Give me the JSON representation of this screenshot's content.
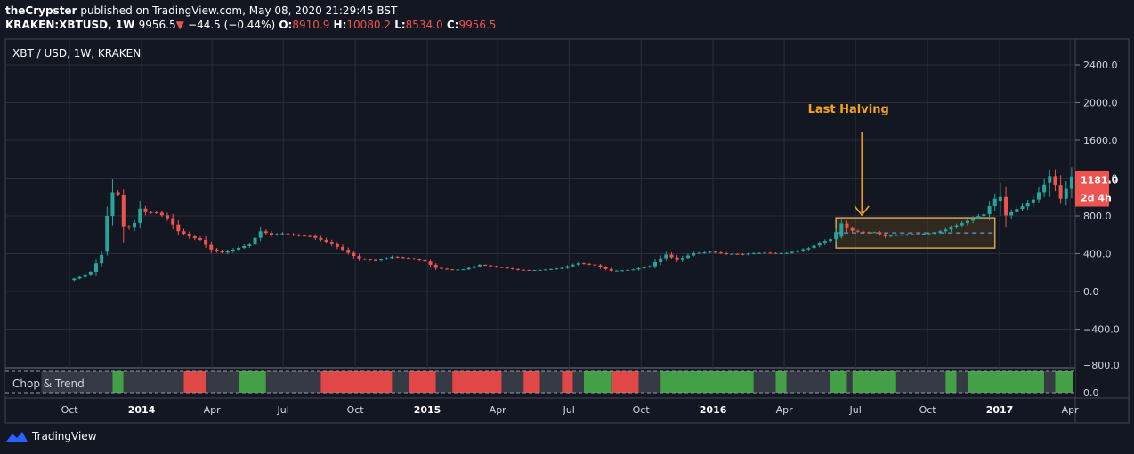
{
  "header": {
    "author": "theCrypster",
    "published_text": "published on TradingView.com, May 08, 2020 21:29:45 BST",
    "symbol": "KRAKEN:XBTUSD, 1W",
    "last": "9956.5",
    "down_arrow": "▼",
    "change": "−44.5 (−0.44%)",
    "o_label": "O:",
    "o_value": "8910.9",
    "h_label": "H:",
    "h_value": "10080.2",
    "l_label": "L:",
    "l_value": "8534.0",
    "c_label": "C:",
    "c_value": "9956.5"
  },
  "pane_title": "XBT / USD, 1W, KRAKEN",
  "annotation": "Last Halving",
  "price_label": "1181.0",
  "time_label": "2d 4h",
  "indicator_title": "Chop & Trend",
  "footer": {
    "brand": "TradingView",
    "logo_icon": "tradingview-logo-icon"
  },
  "colors": {
    "up": "#26a69a",
    "down": "#ef5350",
    "annotation": "#f7a21b",
    "chop": "#363a45",
    "trend_up": "#43a047",
    "trend_down": "#e04848"
  },
  "chart_data": {
    "type": "candlestick",
    "ylim": [
      -800,
      2600
    ],
    "y_ticks": [
      -800,
      -400,
      0,
      400,
      800,
      1200,
      1600,
      2000,
      2400
    ],
    "y_tick_labels": [
      "−800.0",
      "−400.0",
      "0.0",
      "400.0",
      "800.0",
      "1200.0",
      "1600.0",
      "2000.0",
      "2400.0"
    ],
    "x_ticks": [
      "Oct",
      "2014",
      "Apr",
      "Jul",
      "Oct",
      "2015",
      "Apr",
      "Jul",
      "Oct",
      "2016",
      "Apr",
      "Jul",
      "Oct",
      "2017",
      "Apr"
    ],
    "close_path": [
      [
        "2013-09-30",
        120
      ],
      [
        "2013-10-14",
        150
      ],
      [
        "2013-10-28",
        200
      ],
      [
        "2013-11-11",
        380
      ],
      [
        "2013-11-25",
        800
      ],
      [
        "2013-12-02",
        1050
      ],
      [
        "2013-12-09",
        900
      ],
      [
        "2013-12-16",
        700
      ],
      [
        "2013-12-23",
        750
      ],
      [
        "2013-12-30",
        900
      ],
      [
        "2014-01-06",
        850
      ],
      [
        "2014-01-20",
        820
      ],
      [
        "2014-02-03",
        750
      ],
      [
        "2014-02-17",
        620
      ],
      [
        "2014-03-03",
        580
      ],
      [
        "2014-03-17",
        560
      ],
      [
        "2014-03-31",
        460
      ],
      [
        "2014-04-14",
        420
      ],
      [
        "2014-04-28",
        440
      ],
      [
        "2014-05-19",
        480
      ],
      [
        "2014-06-02",
        620
      ],
      [
        "2014-06-16",
        600
      ],
      [
        "2014-06-30",
        630
      ],
      [
        "2014-07-14",
        620
      ],
      [
        "2014-08-04",
        590
      ],
      [
        "2014-08-25",
        510
      ],
      [
        "2014-09-15",
        430
      ],
      [
        "2014-10-06",
        350
      ],
      [
        "2014-10-27",
        340
      ],
      [
        "2014-11-17",
        370
      ],
      [
        "2014-12-08",
        340
      ],
      [
        "2014-12-29",
        310
      ],
      [
        "2015-01-12",
        250
      ],
      [
        "2015-01-26",
        240
      ],
      [
        "2015-02-16",
        240
      ],
      [
        "2015-03-09",
        280
      ],
      [
        "2015-03-30",
        250
      ],
      [
        "2015-04-27",
        230
      ],
      [
        "2015-05-25",
        235
      ],
      [
        "2015-06-22",
        245
      ],
      [
        "2015-07-13",
        290
      ],
      [
        "2015-08-03",
        275
      ],
      [
        "2015-08-24",
        225
      ],
      [
        "2015-09-21",
        235
      ],
      [
        "2015-10-12",
        260
      ],
      [
        "2015-11-02",
        380
      ],
      [
        "2015-11-16",
        330
      ],
      [
        "2015-12-07",
        420
      ],
      [
        "2015-12-28",
        430
      ],
      [
        "2016-01-18",
        390
      ],
      [
        "2016-02-08",
        380
      ],
      [
        "2016-03-07",
        415
      ],
      [
        "2016-04-04",
        420
      ],
      [
        "2016-05-02",
        450
      ],
      [
        "2016-05-30",
        540
      ],
      [
        "2016-06-13",
        700
      ],
      [
        "2016-06-27",
        660
      ],
      [
        "2016-07-11",
        650
      ],
      [
        "2016-07-25",
        640
      ],
      [
        "2016-08-08",
        580
      ],
      [
        "2016-08-29",
        580
      ],
      [
        "2016-09-19",
        600
      ],
      [
        "2016-10-10",
        640
      ],
      [
        "2016-10-31",
        700
      ],
      [
        "2016-11-21",
        740
      ],
      [
        "2016-12-12",
        790
      ],
      [
        "2016-12-26",
        960
      ],
      [
        "2017-01-02",
        1000
      ],
      [
        "2017-01-09",
        810
      ],
      [
        "2017-01-23",
        900
      ],
      [
        "2017-02-13",
        1000
      ],
      [
        "2017-03-06",
        1200
      ],
      [
        "2017-03-13",
        1100
      ],
      [
        "2017-03-20",
        950
      ],
      [
        "2017-03-27",
        1050
      ],
      [
        "2017-04-03",
        1181
      ]
    ],
    "key_candles": [
      {
        "date": "2013-11-18",
        "open": 420,
        "high": 900,
        "low": 380,
        "close": 800
      },
      {
        "date": "2013-11-25",
        "open": 800,
        "high": 1190,
        "low": 700,
        "close": 1050
      },
      {
        "date": "2013-12-09",
        "open": 1020,
        "high": 1080,
        "low": 520,
        "close": 690
      },
      {
        "date": "2016-06-13",
        "open": 580,
        "high": 760,
        "low": 560,
        "close": 720
      },
      {
        "date": "2017-01-02",
        "open": 960,
        "high": 1150,
        "low": 800,
        "close": 1000
      },
      {
        "date": "2017-03-06",
        "open": 1150,
        "high": 1290,
        "low": 1000,
        "close": 1220
      }
    ],
    "halving_date": "2016-07-09",
    "range_box": {
      "start": "2016-06-06",
      "end": "2016-12-26",
      "top": 780,
      "bottom": 460,
      "mid": 620
    },
    "chop_trend": [
      {
        "start": "2013-08-26",
        "end": "2013-11-25",
        "state": "chop"
      },
      {
        "start": "2013-11-25",
        "end": "2013-12-09",
        "state": "up"
      },
      {
        "start": "2013-12-09",
        "end": "2014-02-24",
        "state": "chop"
      },
      {
        "start": "2014-02-24",
        "end": "2014-03-24",
        "state": "down"
      },
      {
        "start": "2014-03-24",
        "end": "2014-05-05",
        "state": "chop"
      },
      {
        "start": "2014-05-05",
        "end": "2014-06-09",
        "state": "up"
      },
      {
        "start": "2014-06-09",
        "end": "2014-08-18",
        "state": "chop"
      },
      {
        "start": "2014-08-18",
        "end": "2014-11-17",
        "state": "down"
      },
      {
        "start": "2014-11-17",
        "end": "2014-12-08",
        "state": "chop"
      },
      {
        "start": "2014-12-08",
        "end": "2015-01-12",
        "state": "down"
      },
      {
        "start": "2015-01-12",
        "end": "2015-02-02",
        "state": "chop"
      },
      {
        "start": "2015-02-02",
        "end": "2015-04-06",
        "state": "down"
      },
      {
        "start": "2015-04-06",
        "end": "2015-05-04",
        "state": "chop"
      },
      {
        "start": "2015-05-04",
        "end": "2015-05-25",
        "state": "down"
      },
      {
        "start": "2015-05-25",
        "end": "2015-06-22",
        "state": "chop"
      },
      {
        "start": "2015-06-22",
        "end": "2015-07-06",
        "state": "down"
      },
      {
        "start": "2015-07-06",
        "end": "2015-07-20",
        "state": "chop"
      },
      {
        "start": "2015-07-20",
        "end": "2015-08-24",
        "state": "up"
      },
      {
        "start": "2015-08-24",
        "end": "2015-09-28",
        "state": "down"
      },
      {
        "start": "2015-09-28",
        "end": "2015-10-26",
        "state": "chop"
      },
      {
        "start": "2015-10-26",
        "end": "2016-02-22",
        "state": "up"
      },
      {
        "start": "2016-02-22",
        "end": "2016-03-21",
        "state": "chop"
      },
      {
        "start": "2016-03-21",
        "end": "2016-04-04",
        "state": "up"
      },
      {
        "start": "2016-04-04",
        "end": "2016-05-30",
        "state": "chop"
      },
      {
        "start": "2016-05-30",
        "end": "2016-06-20",
        "state": "up"
      },
      {
        "start": "2016-06-20",
        "end": "2016-06-27",
        "state": "chop"
      },
      {
        "start": "2016-06-27",
        "end": "2016-08-22",
        "state": "up"
      },
      {
        "start": "2016-08-22",
        "end": "2016-10-24",
        "state": "chop"
      },
      {
        "start": "2016-10-24",
        "end": "2016-11-07",
        "state": "up"
      },
      {
        "start": "2016-11-07",
        "end": "2016-11-21",
        "state": "chop"
      },
      {
        "start": "2016-11-21",
        "end": "2017-02-27",
        "state": "up"
      },
      {
        "start": "2017-02-27",
        "end": "2017-03-13",
        "state": "chop"
      },
      {
        "start": "2017-03-13",
        "end": "2017-04-24",
        "state": "up"
      }
    ],
    "indicator_ticks": [
      "−800.0",
      "0.0"
    ]
  }
}
